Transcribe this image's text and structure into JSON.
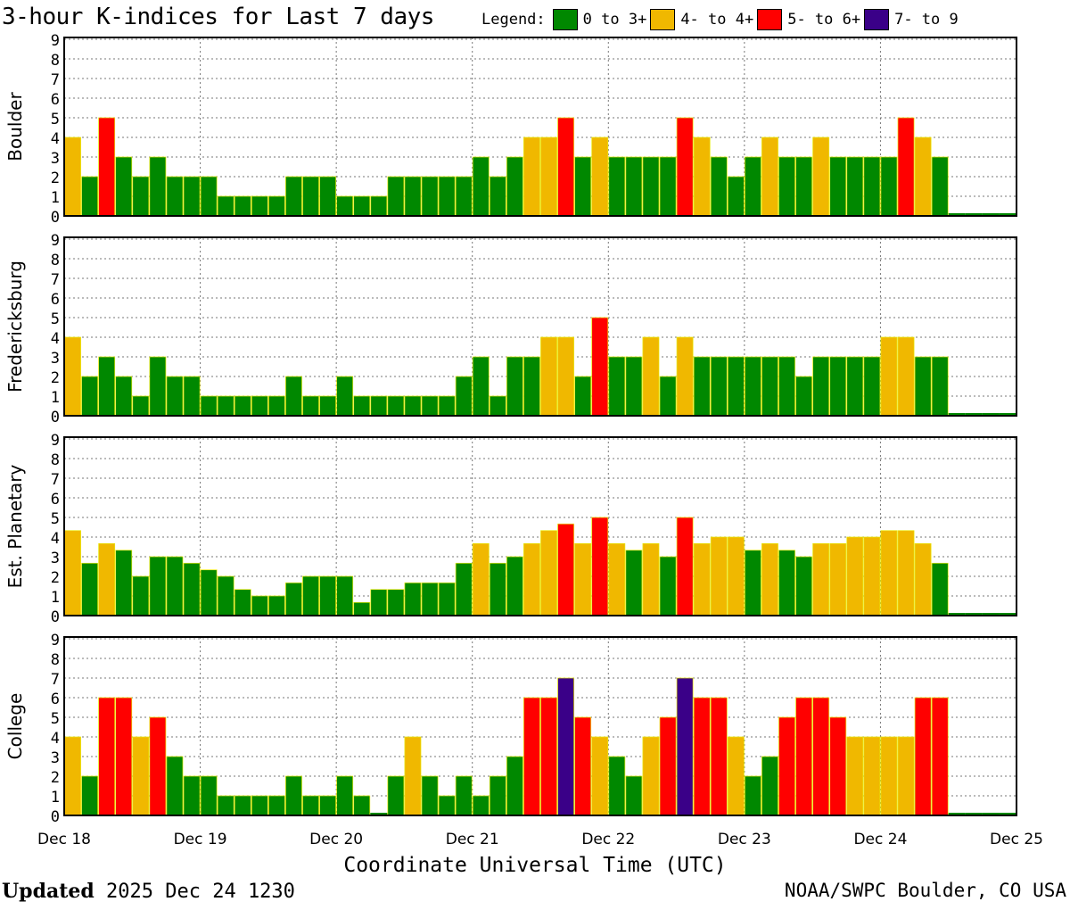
{
  "header": {
    "title": "3-hour K-indices for Last 7 days",
    "legend_label": "Legend:",
    "legend": [
      {
        "label": "0 to 3+",
        "color": "#008800"
      },
      {
        "label": "4- to 4+",
        "color": "#f0b800"
      },
      {
        "label": "5- to 6+",
        "color": "#ff0000"
      },
      {
        "label": "7- to 9",
        "color": "#3a0088"
      }
    ]
  },
  "chart_data": {
    "type": "bar",
    "title": "3-hour K-indices for Last 7 days",
    "xlabel": "Coordinate Universal Time (UTC)",
    "ylim": [
      0,
      9
    ],
    "yticks": [
      "0",
      "1",
      "2",
      "3",
      "4",
      "5",
      "6",
      "7",
      "8",
      "9"
    ],
    "xticks": [
      "Dec 18",
      "Dec 19",
      "Dec 20",
      "Dec 21",
      "Dec 22",
      "Dec 23",
      "Dec 24",
      "Dec 25"
    ],
    "grid": true,
    "bins_per_day": 8,
    "color_scale": [
      {
        "max": 3.5,
        "color": "#008800"
      },
      {
        "max": 4.5,
        "color": "#f0b800"
      },
      {
        "max": 6.5,
        "color": "#ff0000"
      },
      {
        "max": 9,
        "color": "#3a0088"
      }
    ],
    "panels": [
      {
        "name": "Boulder",
        "values": [
          4,
          2,
          5,
          3,
          2,
          3,
          2,
          2,
          2,
          1,
          1,
          1,
          1,
          2,
          2,
          2,
          1,
          1,
          1,
          2,
          2,
          2,
          2,
          2,
          3,
          2,
          3,
          4,
          4,
          5,
          3,
          4,
          3,
          3,
          3,
          3,
          5,
          4,
          3,
          2,
          3,
          4,
          3,
          3,
          4,
          3,
          3,
          3,
          3,
          5,
          4,
          3,
          0,
          0,
          0,
          0
        ]
      },
      {
        "name": "Fredericksburg",
        "values": [
          4,
          2,
          3,
          2,
          1,
          3,
          2,
          2,
          1,
          1,
          1,
          1,
          1,
          2,
          1,
          1,
          2,
          1,
          1,
          1,
          1,
          1,
          1,
          2,
          3,
          1,
          3,
          3,
          4,
          4,
          2,
          5,
          3,
          3,
          4,
          2,
          4,
          3,
          3,
          3,
          3,
          3,
          3,
          2,
          3,
          3,
          3,
          3,
          4,
          4,
          3,
          3,
          0,
          0,
          0,
          0
        ]
      },
      {
        "name": "Est. Planetary",
        "values": [
          4.33,
          2.67,
          3.67,
          3.33,
          2,
          3,
          3,
          2.67,
          2.33,
          2,
          1.33,
          1,
          1,
          1.67,
          2,
          2,
          2,
          0.67,
          1.33,
          1.33,
          1.67,
          1.67,
          1.67,
          2.67,
          3.67,
          2.67,
          3,
          3.67,
          4.33,
          4.67,
          3.67,
          5,
          3.67,
          3.33,
          3.67,
          3,
          5,
          3.67,
          4,
          4,
          3.33,
          3.67,
          3.33,
          3,
          3.67,
          3.67,
          4,
          4,
          4.33,
          4.33,
          3.67,
          2.67,
          0,
          0,
          0,
          0
        ]
      },
      {
        "name": "College",
        "values": [
          4,
          2,
          6,
          6,
          4,
          5,
          3,
          2,
          2,
          1,
          1,
          1,
          1,
          2,
          1,
          1,
          2,
          1,
          0,
          2,
          4,
          2,
          1,
          2,
          1,
          2,
          3,
          6,
          6,
          7,
          5,
          4,
          3,
          2,
          4,
          5,
          7,
          6,
          6,
          4,
          2,
          3,
          5,
          6,
          6,
          5,
          4,
          4,
          4,
          4,
          6,
          6,
          0,
          0,
          0,
          0
        ]
      }
    ]
  },
  "footer": {
    "updated_label": "Updated",
    "updated_value": "2025 Dec 24 1230",
    "credit": "NOAA/SWPC Boulder, CO USA"
  }
}
